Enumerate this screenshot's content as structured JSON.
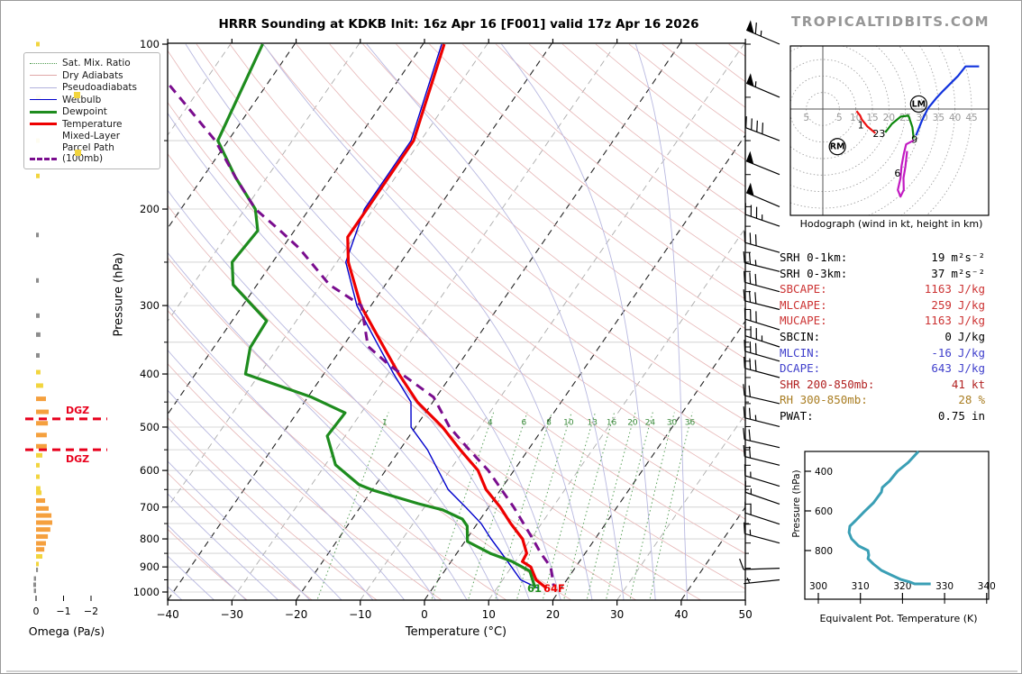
{
  "header": {
    "title": "HRRR Sounding at KDKB Init: 16z Apr 16 [F001] valid 17z Apr 16 2026",
    "brand": "TROPICALTIDBITS.COM"
  },
  "chart_data": {
    "type": "skewt-composite",
    "skewt": {
      "xlabel": "Temperature (°C)",
      "ylabel": "Pressure (hPa)",
      "t_range": [
        -40,
        50
      ],
      "p_range": [
        100,
        1050
      ],
      "t_ticks": [
        "−40",
        "−30",
        "−20",
        "−10",
        "0",
        "10",
        "20",
        "30",
        "40",
        "50"
      ],
      "t_tick_vals": [
        -40,
        -30,
        -20,
        -10,
        0,
        10,
        20,
        30,
        40,
        50
      ],
      "p_ticks": [
        100,
        200,
        300,
        400,
        500,
        600,
        700,
        800,
        900,
        1000
      ],
      "surface_dewpoint_label": "61",
      "surface_temp_label": "64F",
      "mixratio_values": [
        1,
        4,
        6,
        8,
        10,
        13,
        16,
        20,
        24,
        30,
        36
      ],
      "mixratio_label_pressure": 490,
      "legend": [
        {
          "label": "Sat. Mix. Ratio",
          "color": "#4e9a4e",
          "style": "dotted",
          "weight": 1
        },
        {
          "label": "Dry Adiabats",
          "color": "#e0a8a8",
          "style": "solid",
          "weight": 1
        },
        {
          "label": "Pseudoadiabats",
          "color": "#b0b0dd",
          "style": "solid",
          "weight": 1
        },
        {
          "label": "Wetbulb",
          "color": "#0000cc",
          "style": "solid",
          "weight": 1.5
        },
        {
          "label": "Dewpoint",
          "color": "#1e8c1e",
          "style": "solid",
          "weight": 3
        },
        {
          "label": "Temperature",
          "color": "#ee0000",
          "style": "solid",
          "weight": 3
        },
        {
          "label": "Mixed-Layer\nParcel Path (100mb)",
          "color": "#7a0d8e",
          "style": "dashed",
          "weight": 3
        }
      ],
      "colors": {
        "temperature": "#ee0000",
        "dewpoint": "#1e8c1e",
        "wetbulb": "#0000cc",
        "parcel": "#7a0d8e",
        "isotherm_major": "#222222",
        "isotherm_minor": "#ababab",
        "dry_adiabat": "#e6b6b6",
        "pseudoadiabat": "#b8b8e0",
        "mixratio": "#5aa05a",
        "gridline": "#cccccc"
      },
      "series": {
        "temperature": [
          [
            100,
            -56.7
          ],
          [
            150,
            -51.1
          ],
          [
            200,
            -51.0
          ],
          [
            225,
            -51.0
          ],
          [
            250,
            -48.2
          ],
          [
            300,
            -41.6
          ],
          [
            350,
            -34.5
          ],
          [
            400,
            -28.3
          ],
          [
            450,
            -22.4
          ],
          [
            500,
            -15.8
          ],
          [
            550,
            -10.6
          ],
          [
            600,
            -5.6
          ],
          [
            650,
            -2.3
          ],
          [
            700,
            1.8
          ],
          [
            750,
            5.2
          ],
          [
            800,
            8.7
          ],
          [
            850,
            10.9
          ],
          [
            880,
            11.1
          ],
          [
            900,
            13.0
          ],
          [
            950,
            15.2
          ],
          [
            985,
            17.8
          ]
        ],
        "dewpoint": [
          [
            100,
            -85.0
          ],
          [
            150,
            -81.6
          ],
          [
            175,
            -74.9
          ],
          [
            200,
            -68.4
          ],
          [
            219,
            -65.7
          ],
          [
            250,
            -66.3
          ],
          [
            275,
            -63.7
          ],
          [
            320,
            -54.6
          ],
          [
            358,
            -54.3
          ],
          [
            400,
            -52.2
          ],
          [
            441,
            -39.4
          ],
          [
            471,
            -32.5
          ],
          [
            519,
            -32.8
          ],
          [
            586,
            -28.4
          ],
          [
            637,
            -22.6
          ],
          [
            652,
            -19.8
          ],
          [
            690,
            -11.3
          ],
          [
            708,
            -6.9
          ],
          [
            736,
            -2.8
          ],
          [
            758,
            -1.3
          ],
          [
            809,
            0.4
          ],
          [
            850,
            5.2
          ],
          [
            879,
            9.4
          ],
          [
            916,
            13.3
          ],
          [
            985,
            16.0
          ]
        ],
        "wetbulb": [
          [
            100,
            -57.1
          ],
          [
            150,
            -51.5
          ],
          [
            200,
            -51.4
          ],
          [
            250,
            -48.6
          ],
          [
            300,
            -42.2
          ],
          [
            350,
            -35.2
          ],
          [
            400,
            -29.1
          ],
          [
            450,
            -23.4
          ],
          [
            500,
            -20.7
          ],
          [
            550,
            -15.7
          ],
          [
            600,
            -11.8
          ],
          [
            650,
            -8.2
          ],
          [
            700,
            -3.6
          ],
          [
            750,
            0.6
          ],
          [
            800,
            3.8
          ],
          [
            850,
            7.0
          ],
          [
            900,
            10.0
          ],
          [
            950,
            12.8
          ],
          [
            985,
            16.5
          ]
        ],
        "parcel": [
          [
            119,
            -95.0
          ],
          [
            150,
            -82.0
          ],
          [
            175,
            -74.9
          ],
          [
            200,
            -68.4
          ],
          [
            219,
            -62.2
          ],
          [
            236,
            -57.3
          ],
          [
            275,
            -48.7
          ],
          [
            300,
            -41.5
          ],
          [
            356,
            -36.1
          ],
          [
            384,
            -31.0
          ],
          [
            441,
            -20.4
          ],
          [
            500,
            -14.7
          ],
          [
            550,
            -9.2
          ],
          [
            600,
            -4.0
          ],
          [
            650,
            0.1
          ],
          [
            700,
            3.9
          ],
          [
            750,
            7.2
          ],
          [
            800,
            10.3
          ],
          [
            850,
            13.1
          ],
          [
            900,
            16.1
          ],
          [
            975,
            18.6
          ]
        ]
      }
    },
    "wind_barbs": [
      [
        100,
        65,
        293
      ],
      [
        125,
        55,
        293
      ],
      [
        150,
        40,
        291
      ],
      [
        173,
        50,
        292
      ],
      [
        198,
        50,
        293
      ],
      [
        215,
        35,
        289
      ],
      [
        240,
        30,
        286
      ],
      [
        260,
        25,
        284
      ],
      [
        283,
        30,
        285
      ],
      [
        305,
        30,
        284
      ],
      [
        332,
        30,
        287
      ],
      [
        357,
        35,
        288
      ],
      [
        379,
        30,
        286
      ],
      [
        406,
        30,
        285
      ],
      [
        453,
        20,
        283
      ],
      [
        499,
        25,
        284
      ],
      [
        545,
        20,
        283
      ],
      [
        587,
        20,
        284
      ],
      [
        641,
        15,
        287
      ],
      [
        691,
        15,
        289
      ],
      [
        752,
        20,
        288
      ],
      [
        814,
        15,
        285
      ],
      [
        905,
        10,
        268
      ],
      [
        950,
        5,
        264
      ]
    ],
    "omega": {
      "xlabel": "Omega (Pa/s)",
      "ticks": [
        "0",
        "−1",
        "−2"
      ],
      "tick_vals": [
        0,
        -1,
        -2
      ],
      "dgz_label": "DGZ",
      "dgz_pressures": [
        483,
        550
      ],
      "colors": {
        "weak": "#F2D53E",
        "strong": "#F5A03E",
        "neutral": "#8C8C8C",
        "dgz": "#e8001c"
      },
      "bars": [
        [
          100,
          -0.13,
          "y"
        ],
        [
          125,
          -0.16,
          "y"
        ],
        [
          150,
          -0.13,
          "y"
        ],
        [
          174,
          -0.13,
          "y"
        ],
        [
          223,
          -0.1,
          "g"
        ],
        [
          270,
          -0.1,
          "g"
        ],
        [
          313,
          -0.13,
          "g"
        ],
        [
          339,
          -0.16,
          "g"
        ],
        [
          370,
          -0.13,
          "g"
        ],
        [
          397,
          -0.16,
          "y"
        ],
        [
          420,
          -0.26,
          "y"
        ],
        [
          444,
          -0.36,
          "o"
        ],
        [
          469,
          -0.46,
          "o"
        ],
        [
          492,
          -0.43,
          "o"
        ],
        [
          517,
          -0.39,
          "o"
        ],
        [
          542,
          -0.39,
          "o"
        ],
        [
          563,
          -0.23,
          "y"
        ],
        [
          587,
          -0.13,
          "y"
        ],
        [
          616,
          -0.13,
          "y"
        ],
        [
          647,
          -0.16,
          "y"
        ],
        [
          659,
          -0.2,
          "y"
        ],
        [
          681,
          -0.33,
          "o"
        ],
        [
          704,
          -0.46,
          "o"
        ],
        [
          725,
          -0.56,
          "o"
        ],
        [
          747,
          -0.59,
          "o"
        ],
        [
          769,
          -0.52,
          "o"
        ],
        [
          792,
          -0.43,
          "o"
        ],
        [
          815,
          -0.36,
          "o"
        ],
        [
          836,
          -0.3,
          "o"
        ],
        [
          861,
          -0.23,
          "y"
        ],
        [
          889,
          -0.1,
          "y"
        ],
        [
          911,
          -0.07,
          "g"
        ],
        [
          945,
          0.08,
          "g"
        ],
        [
          970,
          0.1,
          "g"
        ],
        [
          995,
          0.08,
          "g"
        ]
      ]
    },
    "hodograph": {
      "caption": "Hodograph (wind in kt, height in km)",
      "ring_step_kt": 5,
      "ring_max_kt": 45,
      "axis_labels": [
        "5",
        "5",
        "10",
        "15",
        "20",
        "25",
        "30",
        "35",
        "40",
        "45"
      ],
      "axis_label_vals": [
        -5,
        5,
        10,
        15,
        20,
        25,
        30,
        35,
        40,
        45
      ],
      "segments": {
        "red": {
          "color": "#ee1111",
          "points": [
            [
              10.2,
              -0.6
            ],
            [
              11.3,
              -2.0
            ],
            [
              11.8,
              -3.2
            ],
            [
              13.5,
              -5.3
            ],
            [
              15.9,
              -7.3
            ]
          ]
        },
        "green": {
          "color": "#0c870c",
          "points": [
            [
              18.9,
              -7.1
            ],
            [
              20.9,
              -4.5
            ],
            [
              23.6,
              -2.3
            ],
            [
              25.9,
              -2.0
            ],
            [
              27.1,
              -5.5
            ],
            [
              27.5,
              -8.9
            ]
          ]
        },
        "blue": {
          "color": "#1133dd",
          "points": [
            [
              28.2,
              -8.0
            ],
            [
              30.0,
              -3.5
            ],
            [
              31.8,
              0.2
            ],
            [
              34.5,
              3.5
            ],
            [
              36.4,
              5.5
            ],
            [
              40.9,
              10.0
            ],
            [
              43.2,
              12.9
            ],
            [
              47.3,
              12.9
            ]
          ]
        },
        "magenta": {
          "color": "#c21ac2",
          "points": [
            [
              27.5,
              -9.5
            ],
            [
              25.2,
              -10.7
            ],
            [
              24.5,
              -13.6
            ],
            [
              23.8,
              -17.3
            ],
            [
              23.5,
              -20.9
            ],
            [
              22.7,
              -24.5
            ],
            [
              23.5,
              -26.5
            ],
            [
              24.5,
              -24.5
            ],
            [
              24.4,
              -20.9
            ],
            [
              25.0,
              -17.3
            ],
            [
              25.5,
              -12.7
            ]
          ]
        }
      },
      "height_labels": [
        {
          "text": "1",
          "u": 11.5,
          "v": -5.8
        },
        {
          "text": "23",
          "u": 17.0,
          "v": -8.5
        },
        {
          "text": "9",
          "u": 27.7,
          "v": -10.2
        },
        {
          "text": "6",
          "u": 22.6,
          "v": -20.5
        }
      ],
      "movers": [
        {
          "text": "RM",
          "u": 4.4,
          "v": -12.2
        },
        {
          "text": "LM",
          "u": 29.0,
          "v": 0.7
        }
      ]
    },
    "indices": {
      "rows": [
        {
          "label": "SRH 0-1km:",
          "value": "19",
          "unit": "m²s⁻²",
          "color": "#000000"
        },
        {
          "label": "SRH 0-3km:",
          "value": "37",
          "unit": "m²s⁻²",
          "color": "#000000"
        },
        {
          "label": "SBCAPE:",
          "value": "1163",
          "unit": "J/kg",
          "color": "#cc3333"
        },
        {
          "label": "MLCAPE:",
          "value": "259",
          "unit": "J/kg",
          "color": "#cc3333"
        },
        {
          "label": "MUCAPE:",
          "value": "1163",
          "unit": "J/kg",
          "color": "#cc3333"
        },
        {
          "label": "SBCIN:",
          "value": "0",
          "unit": "J/kg",
          "color": "#000000"
        },
        {
          "label": "MLCIN:",
          "value": "-16",
          "unit": "J/kg",
          "color": "#4040cc"
        },
        {
          "label": "DCAPE:",
          "value": "643",
          "unit": "J/kg",
          "color": "#4040cc"
        },
        {
          "label": "SHR 200-850mb:",
          "value": "41",
          "unit": "kt",
          "color": "#b22222"
        },
        {
          "label": "RH 300-850mb:",
          "value": "28",
          "unit": "%",
          "color": "#a97d22"
        },
        {
          "label": "PWAT:",
          "value": "0.75",
          "unit": "in",
          "color": "#000000"
        }
      ]
    },
    "theta_e": {
      "caption": "Equivalent Pot. Temperature (K)",
      "ylabel": "Pressure (hPa)",
      "color": "#3a9fb5",
      "x_ticks": [
        300,
        310,
        320,
        330,
        340
      ],
      "y_ticks": [
        400,
        600,
        800
      ],
      "x_range": [
        300,
        340
      ],
      "p_range": [
        300,
        1045
      ],
      "points": [
        [
          300,
          323.8
        ],
        [
          355,
          321.4
        ],
        [
          400,
          318.8
        ],
        [
          450,
          316.9
        ],
        [
          482,
          315.2
        ],
        [
          505,
          315.0
        ],
        [
          559,
          313.1
        ],
        [
          604,
          310.9
        ],
        [
          650,
          308.8
        ],
        [
          677,
          307.5
        ],
        [
          709,
          307.3
        ],
        [
          741,
          307.9
        ],
        [
          777,
          309.6
        ],
        [
          800,
          311.8
        ],
        [
          823,
          312.0
        ],
        [
          841,
          311.8
        ],
        [
          868,
          313.1
        ],
        [
          900,
          315.0
        ],
        [
          923,
          317.3
        ],
        [
          945,
          319.5
        ],
        [
          959,
          321.8
        ],
        [
          968,
          322.9
        ],
        [
          968,
          326.7
        ]
      ]
    }
  }
}
